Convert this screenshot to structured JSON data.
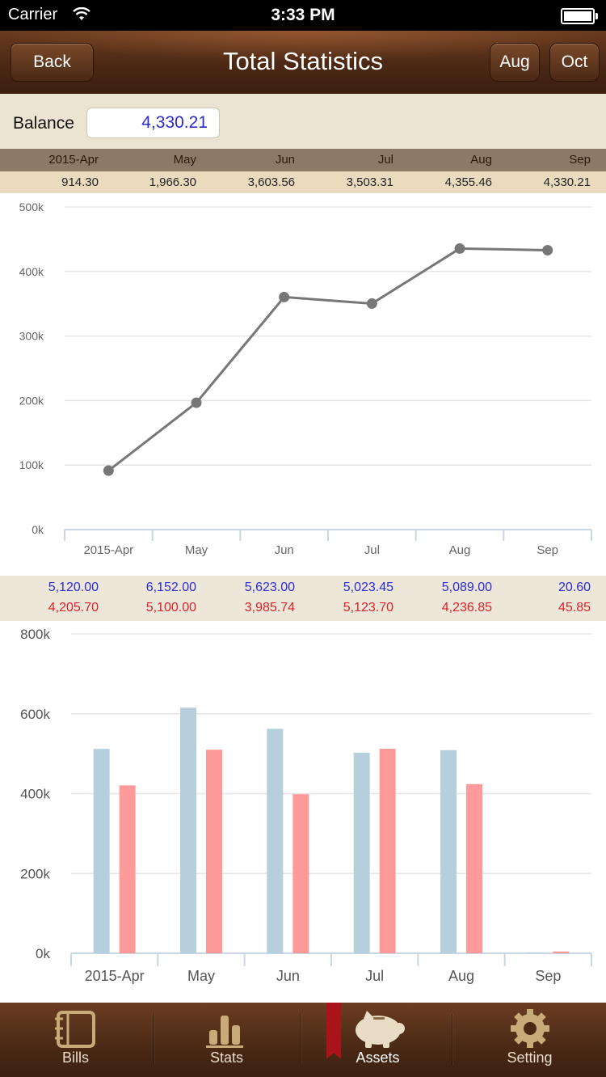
{
  "status": {
    "carrier": "Carrier",
    "time": "3:33 PM"
  },
  "nav": {
    "back_label": "Back",
    "title": "Total Statistics",
    "prev_label": "Aug",
    "next_label": "Oct"
  },
  "balance": {
    "label": "Balance",
    "value": "4,330.21"
  },
  "months": [
    "2015-Apr",
    "May",
    "Jun",
    "Jul",
    "Aug",
    "Sep"
  ],
  "balances": [
    "914.30",
    "1,966.30",
    "3,603.56",
    "3,503.31",
    "4,355.46",
    "4,330.21"
  ],
  "income": [
    "5,120.00",
    "6,152.00",
    "5,623.00",
    "5,023.45",
    "5,089.00",
    "20.60"
  ],
  "expense": [
    "4,205.70",
    "5,100.00",
    "3,985.74",
    "5,123.70",
    "4,236.85",
    "45.85"
  ],
  "colors": {
    "line": "#777777",
    "income_bar": "#b6cfdc",
    "expense_bar": "#ff9a9a",
    "income_text": "#2a2ad8",
    "expense_text": "#e0202a"
  },
  "chart_data": [
    {
      "type": "line",
      "categories": [
        "2015-Apr",
        "May",
        "Jun",
        "Jul",
        "Aug",
        "Sep"
      ],
      "values": [
        91430,
        196630,
        360356,
        350331,
        435546,
        433021
      ],
      "ylim": [
        0,
        500000
      ],
      "yticks": [
        "0k",
        "100k",
        "200k",
        "300k",
        "400k",
        "500k"
      ],
      "grid": true
    },
    {
      "type": "bar",
      "categories": [
        "2015-Apr",
        "May",
        "Jun",
        "Jul",
        "Aug",
        "Sep"
      ],
      "series": [
        {
          "values": [
            512000,
            615200,
            562300,
            502345,
            508900,
            2060
          ]
        },
        {
          "values": [
            420570,
            510000,
            398574,
            512370,
            423685,
            4585
          ]
        }
      ],
      "ylim": [
        0,
        800000
      ],
      "yticks": [
        "0k",
        "200k",
        "400k",
        "600k",
        "800k"
      ],
      "grid": true
    }
  ],
  "tabs": [
    {
      "label": "Bills",
      "icon": "notebook-icon"
    },
    {
      "label": "Stats",
      "icon": "bar-chart-icon"
    },
    {
      "label": "Assets",
      "icon": "piggy-bank-icon"
    },
    {
      "label": "Setting",
      "icon": "gear-icon"
    }
  ]
}
